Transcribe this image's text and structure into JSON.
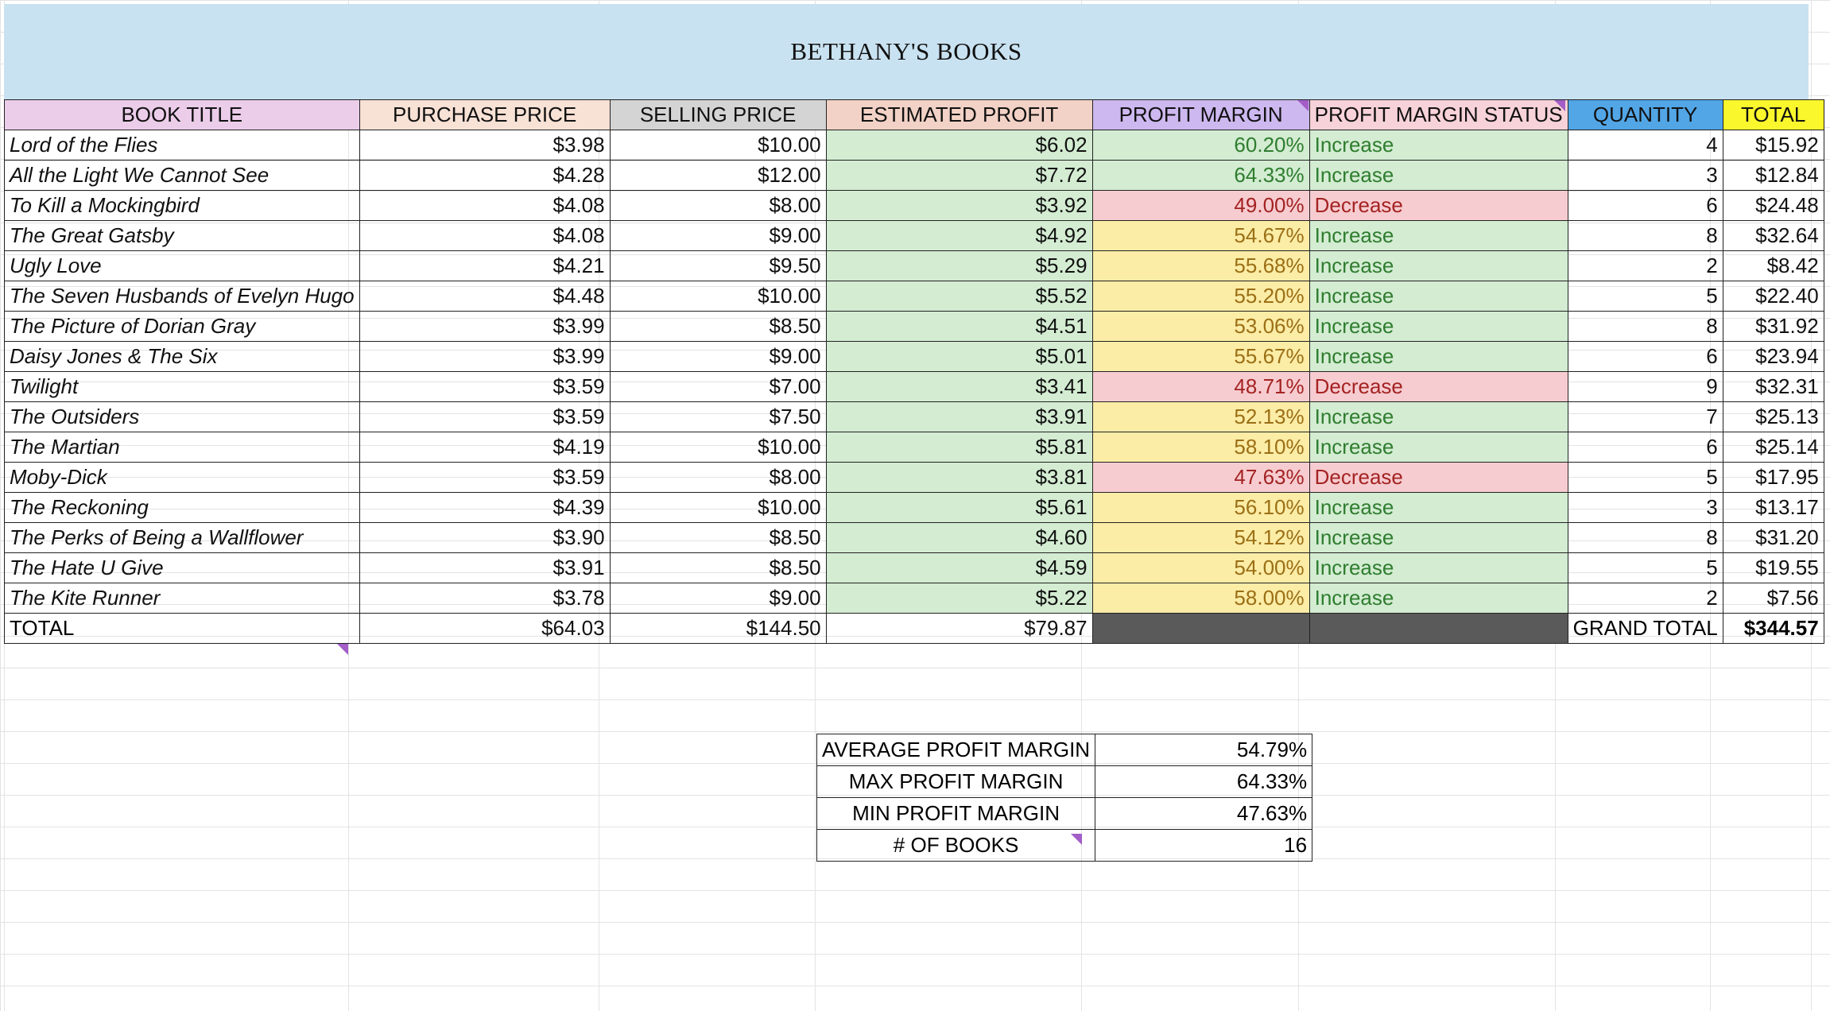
{
  "sheet_title": "BETHANY'S BOOKS",
  "headers": {
    "book_title": "BOOK TITLE",
    "purchase_price": "PURCHASE PRICE",
    "selling_price": "SELLING PRICE",
    "estimated_profit": "ESTIMATED PROFIT",
    "profit_margin": "PROFIT MARGIN",
    "profit_margin_status": "PROFIT MARGIN STATUS",
    "quantity": "QUANTITY",
    "total": "TOTAL"
  },
  "rows": [
    {
      "title": "Lord of the Flies",
      "purchase": "$3.98",
      "selling": "$10.00",
      "profit": "$6.02",
      "margin": "60.20%",
      "status": "Increase",
      "qty": "4",
      "total": "$15.92",
      "margin_color": "green"
    },
    {
      "title": "All the Light We Cannot See",
      "purchase": "$4.28",
      "selling": "$12.00",
      "profit": "$7.72",
      "margin": "64.33%",
      "status": "Increase",
      "qty": "3",
      "total": "$12.84",
      "margin_color": "green"
    },
    {
      "title": "To Kill a Mockingbird",
      "purchase": "$4.08",
      "selling": "$8.00",
      "profit": "$3.92",
      "margin": "49.00%",
      "status": "Decrease",
      "qty": "6",
      "total": "$24.48",
      "margin_color": "red"
    },
    {
      "title": "The Great Gatsby",
      "purchase": "$4.08",
      "selling": "$9.00",
      "profit": "$4.92",
      "margin": "54.67%",
      "status": "Increase",
      "qty": "8",
      "total": "$32.64",
      "margin_color": "yellow"
    },
    {
      "title": "Ugly Love",
      "purchase": "$4.21",
      "selling": "$9.50",
      "profit": "$5.29",
      "margin": "55.68%",
      "status": "Increase",
      "qty": "2",
      "total": "$8.42",
      "margin_color": "yellow"
    },
    {
      "title": "The Seven Husbands of Evelyn Hugo",
      "purchase": "$4.48",
      "selling": "$10.00",
      "profit": "$5.52",
      "margin": "55.20%",
      "status": "Increase",
      "qty": "5",
      "total": "$22.40",
      "margin_color": "yellow"
    },
    {
      "title": "The Picture of Dorian Gray",
      "purchase": "$3.99",
      "selling": "$8.50",
      "profit": "$4.51",
      "margin": "53.06%",
      "status": "Increase",
      "qty": "8",
      "total": "$31.92",
      "margin_color": "yellow"
    },
    {
      "title": "Daisy Jones & The Six",
      "purchase": "$3.99",
      "selling": "$9.00",
      "profit": "$5.01",
      "margin": "55.67%",
      "status": "Increase",
      "qty": "6",
      "total": "$23.94",
      "margin_color": "yellow"
    },
    {
      "title": "Twilight",
      "purchase": "$3.59",
      "selling": "$7.00",
      "profit": "$3.41",
      "margin": "48.71%",
      "status": "Decrease",
      "qty": "9",
      "total": "$32.31",
      "margin_color": "red"
    },
    {
      "title": "The Outsiders",
      "purchase": "$3.59",
      "selling": "$7.50",
      "profit": "$3.91",
      "margin": "52.13%",
      "status": "Increase",
      "qty": "7",
      "total": "$25.13",
      "margin_color": "yellow"
    },
    {
      "title": "The Martian",
      "purchase": "$4.19",
      "selling": "$10.00",
      "profit": "$5.81",
      "margin": "58.10%",
      "status": "Increase",
      "qty": "6",
      "total": "$25.14",
      "margin_color": "yellow"
    },
    {
      "title": "Moby-Dick",
      "purchase": "$3.59",
      "selling": "$8.00",
      "profit": "$3.81",
      "margin": "47.63%",
      "status": "Decrease",
      "qty": "5",
      "total": "$17.95",
      "margin_color": "red"
    },
    {
      "title": "The Reckoning",
      "purchase": "$4.39",
      "selling": "$10.00",
      "profit": "$5.61",
      "margin": "56.10%",
      "status": "Increase",
      "qty": "3",
      "total": "$13.17",
      "margin_color": "yellow"
    },
    {
      "title": "The Perks of Being a Wallflower",
      "purchase": "$3.90",
      "selling": "$8.50",
      "profit": "$4.60",
      "margin": "54.12%",
      "status": "Increase",
      "qty": "8",
      "total": "$31.20",
      "margin_color": "yellow"
    },
    {
      "title": "The Hate U Give",
      "purchase": "$3.91",
      "selling": "$8.50",
      "profit": "$4.59",
      "margin": "54.00%",
      "status": "Increase",
      "qty": "5",
      "total": "$19.55",
      "margin_color": "yellow"
    },
    {
      "title": "The Kite Runner",
      "purchase": "$3.78",
      "selling": "$9.00",
      "profit": "$5.22",
      "margin": "58.00%",
      "status": "Increase",
      "qty": "2",
      "total": "$7.56",
      "margin_color": "yellow"
    }
  ],
  "totals": {
    "label": "TOTAL",
    "purchase": "$64.03",
    "selling": "$144.50",
    "profit": "$79.87",
    "grand_label": "GRAND TOTAL",
    "grand_value": "$344.57"
  },
  "summary": [
    {
      "label": "AVERAGE PROFIT MARGIN",
      "value": "54.79%"
    },
    {
      "label": "MAX PROFIT MARGIN",
      "value": "64.33%"
    },
    {
      "label": "MIN PROFIT MARGIN",
      "value": "47.63%"
    },
    {
      "label": "# OF BOOKS",
      "value": "16"
    }
  ],
  "colors": {
    "title_bg": "#c9e2f1",
    "increase_text": "#2f7d2f",
    "decrease_text": "#a42323",
    "green_fill": "#d3ecd2",
    "yellow_fill": "#fbeca6",
    "red_fill": "#f6ccd0"
  }
}
